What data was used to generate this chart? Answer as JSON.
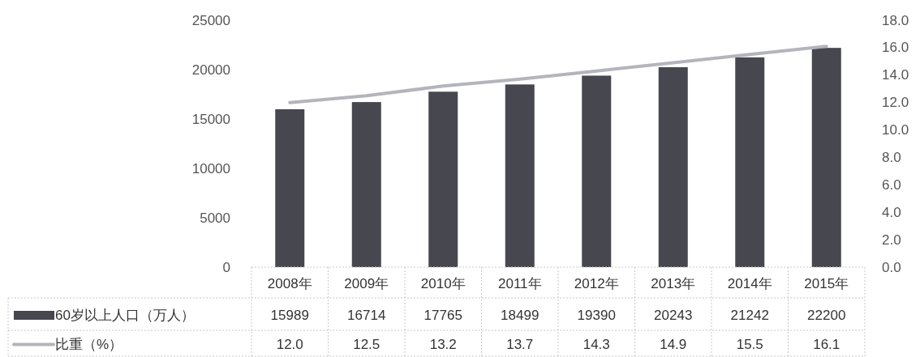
{
  "chart_data": {
    "type": "bar",
    "categories": [
      "2008年",
      "2009年",
      "2010年",
      "2011年",
      "2012年",
      "2013年",
      "2014年",
      "2015年"
    ],
    "series": [
      {
        "name": "60岁以上人口（万人）",
        "color": "#47474f",
        "values": [
          15989,
          16714,
          17765,
          18499,
          19390,
          20243,
          21242,
          22200
        ],
        "value_labels": [
          "15989",
          "16714",
          "17765",
          "18499",
          "19390",
          "20243",
          "21242",
          "22200"
        ]
      },
      {
        "name": "比重（%）",
        "type": "line",
        "axis": "y2",
        "color": "#b4b4bc",
        "values": [
          12.0,
          12.5,
          13.2,
          13.7,
          14.3,
          14.9,
          15.5,
          16.1
        ],
        "value_labels": [
          "12.0",
          "12.5",
          "13.2",
          "13.7",
          "14.3",
          "14.9",
          "15.5",
          "16.1"
        ]
      }
    ],
    "ylim": [
      0,
      25000
    ],
    "yticks": [
      0,
      5000,
      10000,
      15000,
      20000,
      25000
    ],
    "y2lim": [
      0,
      18
    ],
    "y2ticks": [
      {
        "value": 0,
        "label": "0.0"
      },
      {
        "value": 2,
        "label": "2.0"
      },
      {
        "value": 4,
        "label": "4.0"
      },
      {
        "value": 6,
        "label": "6.0"
      },
      {
        "value": 8,
        "label": "8.0"
      },
      {
        "value": 10,
        "label": "10.0"
      },
      {
        "value": 12,
        "label": "12.0"
      },
      {
        "value": 14,
        "label": "14.0"
      },
      {
        "value": 16,
        "label": "16.0"
      },
      {
        "value": 18,
        "label": "18.0"
      }
    ],
    "legend": "bottom"
  }
}
